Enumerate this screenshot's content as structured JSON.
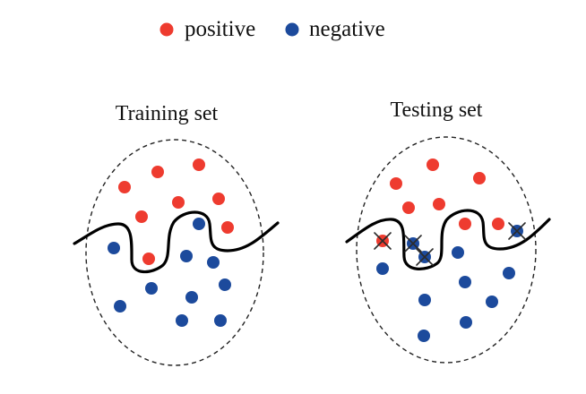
{
  "legend": {
    "positive": {
      "label": "positive",
      "color": "#ee3b2f"
    },
    "negative": {
      "label": "negative",
      "color": "#1c4a9c"
    }
  },
  "panels": {
    "training": {
      "title": "Training set"
    },
    "testing": {
      "title": "Testing set"
    }
  }
}
